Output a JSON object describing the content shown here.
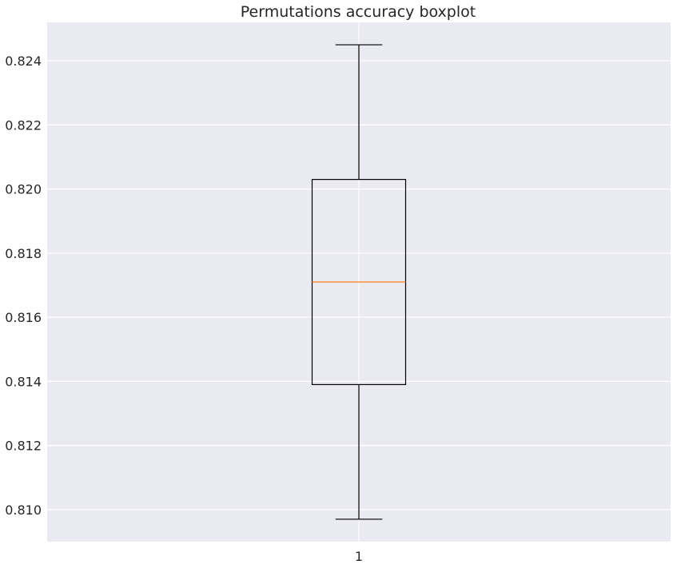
{
  "chart_data": {
    "type": "boxplot",
    "title": "Permutations accuracy boxplot",
    "xlabel": "",
    "ylabel": "",
    "categories": [
      "1"
    ],
    "boxes": [
      {
        "category": "1",
        "whisker_low": 0.8097,
        "q1": 0.8139,
        "median": 0.8171,
        "q3": 0.8203,
        "whisker_high": 0.8245
      }
    ],
    "ylim": [
      0.809,
      0.8252
    ],
    "yticks": [
      0.81,
      0.812,
      0.814,
      0.816,
      0.818,
      0.82,
      0.822,
      0.824
    ],
    "ytick_labels": [
      "0.810",
      "0.812",
      "0.814",
      "0.816",
      "0.818",
      "0.820",
      "0.822",
      "0.824"
    ],
    "grid": true,
    "colors": {
      "plot_background": "#eaeaf2",
      "grid": "#ffffff",
      "box": "#000000",
      "median": "#ff7f0e"
    }
  }
}
